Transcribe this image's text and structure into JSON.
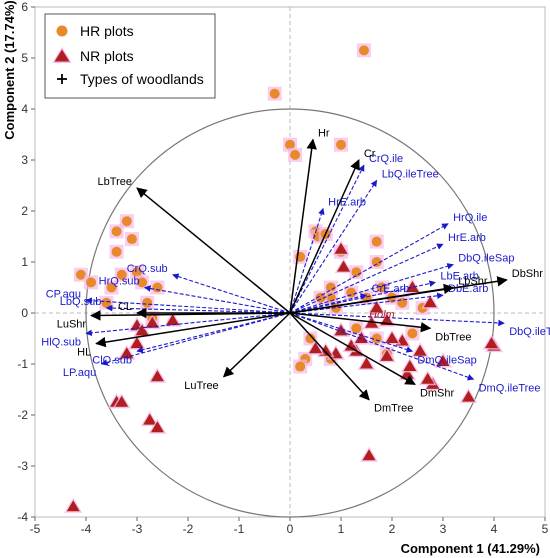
{
  "chart_data": {
    "type": "scatter",
    "subtype": "biplot",
    "xlabel": "Component 1 (41.29%)",
    "ylabel": "Component 2 (17.74%)",
    "xlim": [
      -5,
      5
    ],
    "ylim": [
      -4,
      6
    ],
    "xticks": [
      -5,
      -4,
      -3,
      -2,
      -1,
      0,
      1,
      2,
      3,
      4,
      5
    ],
    "yticks": [
      -4,
      -3,
      -2,
      -1,
      0,
      1,
      2,
      3,
      4,
      5,
      6
    ],
    "circle_radius": 4,
    "legend": {
      "position": "top-left",
      "entries": [
        {
          "label": "HR plots",
          "marker": "circle",
          "color": "#e8892b"
        },
        {
          "label": "NR plots",
          "marker": "triangle",
          "color": "#b01e1e"
        },
        {
          "label": "Types of woodlands",
          "marker": "plus",
          "color": "#000000"
        }
      ]
    },
    "colors": {
      "hr": "#e8892b",
      "nr": "#b01e1e",
      "halo": "#f5b8e8",
      "woodland": "#000000",
      "species": "#1a1acc",
      "circle": "#777777"
    },
    "series": [
      {
        "name": "HR plots",
        "points": [
          [
            -4.1,
            0.75
          ],
          [
            -3.2,
            1.8
          ],
          [
            -3.4,
            1.6
          ],
          [
            -3.1,
            1.45
          ],
          [
            -3.4,
            1.2
          ],
          [
            -3.3,
            0.75
          ],
          [
            -3.0,
            0.8
          ],
          [
            -2.9,
            0.6
          ],
          [
            -2.6,
            0.5
          ],
          [
            -2.8,
            0.2
          ],
          [
            -3.9,
            0.6
          ],
          [
            -3.5,
            0.5
          ],
          [
            -3.6,
            0.2
          ],
          [
            -2.7,
            -0.1
          ],
          [
            -0.3,
            4.3
          ],
          [
            0.0,
            3.3
          ],
          [
            0.1,
            3.1
          ],
          [
            1.45,
            5.15
          ],
          [
            1.0,
            3.3
          ],
          [
            0.5,
            1.6
          ],
          [
            0.55,
            1.5
          ],
          [
            0.7,
            1.55
          ],
          [
            0.2,
            1.1
          ],
          [
            1.7,
            1.4
          ],
          [
            1.0,
            1.2
          ],
          [
            1.3,
            0.8
          ],
          [
            1.7,
            1.0
          ],
          [
            0.8,
            0.5
          ],
          [
            0.8,
            0.3
          ],
          [
            0.6,
            0.3
          ],
          [
            0.9,
            0.1
          ],
          [
            1.2,
            0.4
          ],
          [
            1.5,
            0.3
          ],
          [
            1.8,
            0.5
          ],
          [
            2.0,
            0.3
          ],
          [
            2.2,
            0.2
          ],
          [
            2.6,
            0.1
          ],
          [
            1.3,
            -0.3
          ],
          [
            0.4,
            -0.5
          ],
          [
            0.3,
            -0.9
          ],
          [
            0.8,
            -0.9
          ],
          [
            2.4,
            -0.4
          ],
          [
            1.9,
            -0.8
          ],
          [
            1.7,
            -0.5
          ],
          [
            0.2,
            -1.05
          ]
        ]
      },
      {
        "name": "NR plots",
        "points": [
          [
            -4.25,
            -3.8
          ],
          [
            -3.4,
            -1.75
          ],
          [
            -3.3,
            -1.75
          ],
          [
            -2.75,
            -2.1
          ],
          [
            -2.6,
            -2.25
          ],
          [
            -2.6,
            -1.25
          ],
          [
            -3.0,
            -0.25
          ],
          [
            -2.9,
            -0.35
          ],
          [
            -2.7,
            -0.2
          ],
          [
            -2.3,
            -0.15
          ],
          [
            -3.2,
            -0.8
          ],
          [
            -3.0,
            -0.6
          ],
          [
            1.55,
            -2.8
          ],
          [
            2.3,
            -1.2
          ],
          [
            2.8,
            -1.4
          ],
          [
            2.7,
            -1.3
          ],
          [
            3.0,
            -0.95
          ],
          [
            3.5,
            -1.65
          ],
          [
            4.0,
            -0.65
          ],
          [
            3.95,
            -0.6
          ],
          [
            2.55,
            -0.75
          ],
          [
            1.9,
            -0.85
          ],
          [
            1.5,
            -1.0
          ],
          [
            1.3,
            -0.75
          ],
          [
            0.9,
            -0.8
          ],
          [
            0.7,
            -0.75
          ],
          [
            0.5,
            -0.7
          ],
          [
            1.2,
            -0.65
          ],
          [
            1.4,
            -0.5
          ],
          [
            1.0,
            -0.35
          ],
          [
            1.6,
            -0.2
          ],
          [
            1.9,
            -0.15
          ],
          [
            1.7,
            0.1
          ],
          [
            2.4,
            0.5
          ],
          [
            2.75,
            0.2
          ],
          [
            1.0,
            1.25
          ],
          [
            1.05,
            0.9
          ],
          [
            2.2,
            -0.55
          ],
          [
            2.0,
            -0.5
          ],
          [
            2.35,
            -1.05
          ]
        ]
      }
    ],
    "woodland_vectors": [
      {
        "label": "Hr",
        "x": 0.45,
        "y": 3.4
      },
      {
        "label": "Cr",
        "x": 1.35,
        "y": 3.0
      },
      {
        "label": "LbTree",
        "x": -3.0,
        "y": 2.45
      },
      {
        "label": "DbShr",
        "x": 4.25,
        "y": 0.65
      },
      {
        "label": "LbShr",
        "x": 3.2,
        "y": 0.5
      },
      {
        "label": "DbTree",
        "x": 2.75,
        "y": -0.3
      },
      {
        "label": "DmShr",
        "x": 2.45,
        "y": -1.4
      },
      {
        "label": "DmTree",
        "x": 1.55,
        "y": -1.7
      },
      {
        "label": "LuTree",
        "x": -1.3,
        "y": -1.25
      },
      {
        "label": "LuShr",
        "x": -3.9,
        "y": -0.05
      },
      {
        "label": "CL",
        "x": -3.0,
        "y": 0.0
      },
      {
        "label": "HL",
        "x": -3.8,
        "y": -0.6
      }
    ],
    "species_vectors": [
      {
        "label": "CrQ.ile",
        "x": 1.45,
        "y": 2.9
      },
      {
        "label": "LbQ.ileTree",
        "x": 1.7,
        "y": 2.6
      },
      {
        "label": "HrE.arb",
        "x": 0.65,
        "y": 2.05
      },
      {
        "label": "HrQ.ile",
        "x": 3.1,
        "y": 1.75
      },
      {
        "label": "HrE.arb",
        "x": 3.0,
        "y": 1.35
      },
      {
        "label": "DbQ.ileSap",
        "x": 3.2,
        "y": 0.95
      },
      {
        "label": "LbE.arb",
        "x": 2.85,
        "y": 0.6
      },
      {
        "label": "CrE.arb",
        "x": 1.5,
        "y": 0.35
      },
      {
        "label": "DbE.arb",
        "x": 3.0,
        "y": 0.35
      },
      {
        "label": "DbQ.ileTree",
        "x": 4.2,
        "y": -0.2
      },
      {
        "label": "DmQ.ileSap",
        "x": 2.4,
        "y": -0.75
      },
      {
        "label": "DmQ.ileTree",
        "x": 3.6,
        "y": -1.3
      },
      {
        "label": "CrQ.sub",
        "x": -2.3,
        "y": 0.75
      },
      {
        "label": "HrQ.sub",
        "x": -2.85,
        "y": 0.5
      },
      {
        "label": "CP.aqu",
        "x": -4.0,
        "y": 0.25
      },
      {
        "label": "LbQ.sub",
        "x": -3.6,
        "y": 0.1
      },
      {
        "label": "HlQ.sub",
        "x": -4.0,
        "y": -0.4
      },
      {
        "label": "ClQ.sub",
        "x": -3.0,
        "y": -0.75
      },
      {
        "label": "LP.aqu",
        "x": -3.7,
        "y": -1.0
      }
    ],
    "label_vectors": [
      {
        "label": "Holm",
        "x": 1.55,
        "y": -0.1
      }
    ]
  }
}
